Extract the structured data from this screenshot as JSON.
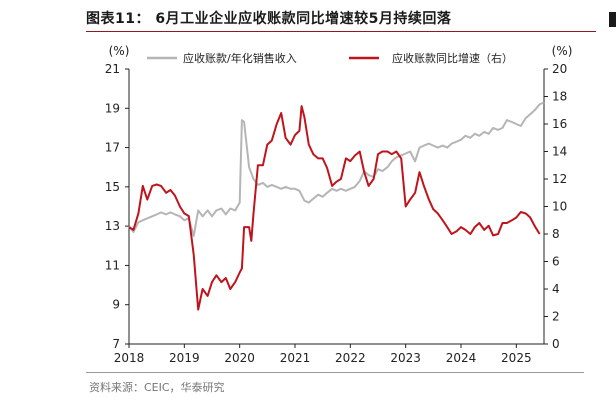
{
  "title": "图表11： 6月工业企业应收账款同比增速较5月持续回落",
  "source": "资料来源：CEIC，华泰研究",
  "colors": {
    "gray_series": "#b5b5b5",
    "red_series": "#c0141c",
    "title_rule": "#8c1c22"
  },
  "chart_data": {
    "type": "line",
    "left_unit": "(%)",
    "right_unit": "(%)",
    "y_left_lim": [
      7,
      21
    ],
    "y_left_ticks": [
      "7",
      "9",
      "11",
      "13",
      "15",
      "17",
      "19",
      "21"
    ],
    "y_right_lim": [
      0,
      20
    ],
    "y_right_ticks": [
      "0",
      "2",
      "4",
      "6",
      "8",
      "10",
      "12",
      "14",
      "16",
      "18",
      "20"
    ],
    "x_lim": [
      2018.0,
      2025.5
    ],
    "x_ticks": [
      "2018",
      "2019",
      "2020",
      "2021",
      "2022",
      "2023",
      "2024",
      "2025"
    ],
    "legend_position": "top",
    "series": [
      {
        "name": "应收账款/年化销售收入",
        "axis": "left",
        "color": "#b5b5b5",
        "points": [
          [
            2018.0,
            13.0
          ],
          [
            2018.08,
            12.7
          ],
          [
            2018.17,
            13.2
          ],
          [
            2018.25,
            13.3
          ],
          [
            2018.33,
            13.4
          ],
          [
            2018.42,
            13.5
          ],
          [
            2018.5,
            13.6
          ],
          [
            2018.58,
            13.7
          ],
          [
            2018.67,
            13.6
          ],
          [
            2018.75,
            13.7
          ],
          [
            2018.83,
            13.6
          ],
          [
            2018.92,
            13.5
          ],
          [
            2019.0,
            13.3
          ],
          [
            2019.08,
            13.4
          ],
          [
            2019.17,
            12.5
          ],
          [
            2019.25,
            13.8
          ],
          [
            2019.33,
            13.5
          ],
          [
            2019.42,
            13.8
          ],
          [
            2019.5,
            13.5
          ],
          [
            2019.58,
            13.8
          ],
          [
            2019.67,
            13.9
          ],
          [
            2019.75,
            13.6
          ],
          [
            2019.83,
            13.9
          ],
          [
            2019.92,
            13.8
          ],
          [
            2020.0,
            14.2
          ],
          [
            2020.04,
            18.4
          ],
          [
            2020.08,
            18.3
          ],
          [
            2020.17,
            16.0
          ],
          [
            2020.25,
            15.4
          ],
          [
            2020.33,
            15.1
          ],
          [
            2020.42,
            15.2
          ],
          [
            2020.5,
            15.0
          ],
          [
            2020.58,
            15.1
          ],
          [
            2020.67,
            15.0
          ],
          [
            2020.75,
            14.9
          ],
          [
            2020.83,
            15.0
          ],
          [
            2020.92,
            14.9
          ],
          [
            2021.0,
            14.9
          ],
          [
            2021.08,
            14.8
          ],
          [
            2021.17,
            14.3
          ],
          [
            2021.25,
            14.2
          ],
          [
            2021.33,
            14.4
          ],
          [
            2021.42,
            14.6
          ],
          [
            2021.5,
            14.5
          ],
          [
            2021.58,
            14.7
          ],
          [
            2021.67,
            14.9
          ],
          [
            2021.75,
            14.8
          ],
          [
            2021.83,
            14.9
          ],
          [
            2021.92,
            14.8
          ],
          [
            2022.0,
            14.9
          ],
          [
            2022.08,
            15.0
          ],
          [
            2022.17,
            15.3
          ],
          [
            2022.25,
            15.8
          ],
          [
            2022.33,
            15.6
          ],
          [
            2022.42,
            15.5
          ],
          [
            2022.5,
            15.9
          ],
          [
            2022.58,
            15.8
          ],
          [
            2022.67,
            16.0
          ],
          [
            2022.75,
            16.3
          ],
          [
            2022.83,
            16.5
          ],
          [
            2022.92,
            16.6
          ],
          [
            2023.0,
            16.7
          ],
          [
            2023.08,
            16.8
          ],
          [
            2023.17,
            16.3
          ],
          [
            2023.25,
            17.0
          ],
          [
            2023.33,
            17.1
          ],
          [
            2023.42,
            17.2
          ],
          [
            2023.5,
            17.1
          ],
          [
            2023.58,
            17.0
          ],
          [
            2023.67,
            17.1
          ],
          [
            2023.75,
            17.0
          ],
          [
            2023.83,
            17.2
          ],
          [
            2023.92,
            17.3
          ],
          [
            2024.0,
            17.4
          ],
          [
            2024.08,
            17.6
          ],
          [
            2024.17,
            17.5
          ],
          [
            2024.25,
            17.7
          ],
          [
            2024.33,
            17.6
          ],
          [
            2024.42,
            17.8
          ],
          [
            2024.5,
            17.7
          ],
          [
            2024.58,
            18.0
          ],
          [
            2024.67,
            17.9
          ],
          [
            2024.75,
            18.0
          ],
          [
            2024.83,
            18.4
          ],
          [
            2024.92,
            18.3
          ],
          [
            2025.0,
            18.2
          ],
          [
            2025.08,
            18.1
          ],
          [
            2025.17,
            18.5
          ],
          [
            2025.25,
            18.7
          ],
          [
            2025.33,
            18.9
          ],
          [
            2025.42,
            19.2
          ],
          [
            2025.5,
            19.3
          ]
        ]
      },
      {
        "name": "应收账款同比增速（右）",
        "axis": "right",
        "color": "#c0141c",
        "points": [
          [
            2018.0,
            8.5
          ],
          [
            2018.08,
            8.3
          ],
          [
            2018.17,
            9.5
          ],
          [
            2018.25,
            11.5
          ],
          [
            2018.33,
            10.5
          ],
          [
            2018.42,
            11.5
          ],
          [
            2018.5,
            11.6
          ],
          [
            2018.58,
            11.5
          ],
          [
            2018.67,
            11.0
          ],
          [
            2018.75,
            11.2
          ],
          [
            2018.83,
            10.8
          ],
          [
            2018.92,
            10.0
          ],
          [
            2019.0,
            9.5
          ],
          [
            2019.08,
            9.3
          ],
          [
            2019.17,
            6.5
          ],
          [
            2019.25,
            2.5
          ],
          [
            2019.33,
            4.0
          ],
          [
            2019.42,
            3.5
          ],
          [
            2019.5,
            4.5
          ],
          [
            2019.58,
            5.0
          ],
          [
            2019.67,
            4.5
          ],
          [
            2019.75,
            4.8
          ],
          [
            2019.83,
            4.0
          ],
          [
            2019.92,
            4.5
          ],
          [
            2020.0,
            5.2
          ],
          [
            2020.04,
            5.5
          ],
          [
            2020.08,
            8.5
          ],
          [
            2020.17,
            8.5
          ],
          [
            2020.21,
            7.5
          ],
          [
            2020.25,
            9.5
          ],
          [
            2020.33,
            13.0
          ],
          [
            2020.42,
            13.0
          ],
          [
            2020.5,
            14.5
          ],
          [
            2020.58,
            14.8
          ],
          [
            2020.67,
            16.0
          ],
          [
            2020.75,
            16.8
          ],
          [
            2020.83,
            15.0
          ],
          [
            2020.92,
            14.5
          ],
          [
            2021.0,
            15.2
          ],
          [
            2021.08,
            15.5
          ],
          [
            2021.12,
            17.3
          ],
          [
            2021.17,
            16.5
          ],
          [
            2021.25,
            14.5
          ],
          [
            2021.33,
            13.8
          ],
          [
            2021.42,
            13.5
          ],
          [
            2021.5,
            13.5
          ],
          [
            2021.58,
            12.8
          ],
          [
            2021.67,
            11.5
          ],
          [
            2021.75,
            11.8
          ],
          [
            2021.83,
            12.0
          ],
          [
            2021.92,
            13.5
          ],
          [
            2022.0,
            13.3
          ],
          [
            2022.08,
            13.7
          ],
          [
            2022.17,
            14.0
          ],
          [
            2022.25,
            12.5
          ],
          [
            2022.33,
            11.5
          ],
          [
            2022.42,
            12.0
          ],
          [
            2022.5,
            13.8
          ],
          [
            2022.58,
            14.0
          ],
          [
            2022.67,
            14.0
          ],
          [
            2022.75,
            13.8
          ],
          [
            2022.83,
            14.0
          ],
          [
            2022.92,
            13.5
          ],
          [
            2023.0,
            10.0
          ],
          [
            2023.08,
            10.5
          ],
          [
            2023.17,
            11.0
          ],
          [
            2023.25,
            12.5
          ],
          [
            2023.33,
            11.5
          ],
          [
            2023.42,
            10.5
          ],
          [
            2023.5,
            9.8
          ],
          [
            2023.58,
            9.5
          ],
          [
            2023.67,
            9.0
          ],
          [
            2023.75,
            8.5
          ],
          [
            2023.83,
            8.0
          ],
          [
            2023.92,
            8.2
          ],
          [
            2024.0,
            8.5
          ],
          [
            2024.08,
            8.3
          ],
          [
            2024.17,
            8.0
          ],
          [
            2024.25,
            8.5
          ],
          [
            2024.33,
            8.8
          ],
          [
            2024.42,
            8.3
          ],
          [
            2024.5,
            8.6
          ],
          [
            2024.58,
            7.9
          ],
          [
            2024.67,
            8.0
          ],
          [
            2024.75,
            8.8
          ],
          [
            2024.83,
            8.8
          ],
          [
            2024.92,
            9.0
          ],
          [
            2025.0,
            9.2
          ],
          [
            2025.08,
            9.6
          ],
          [
            2025.17,
            9.5
          ],
          [
            2025.25,
            9.2
          ],
          [
            2025.33,
            8.6
          ],
          [
            2025.42,
            8.0
          ]
        ]
      }
    ]
  }
}
